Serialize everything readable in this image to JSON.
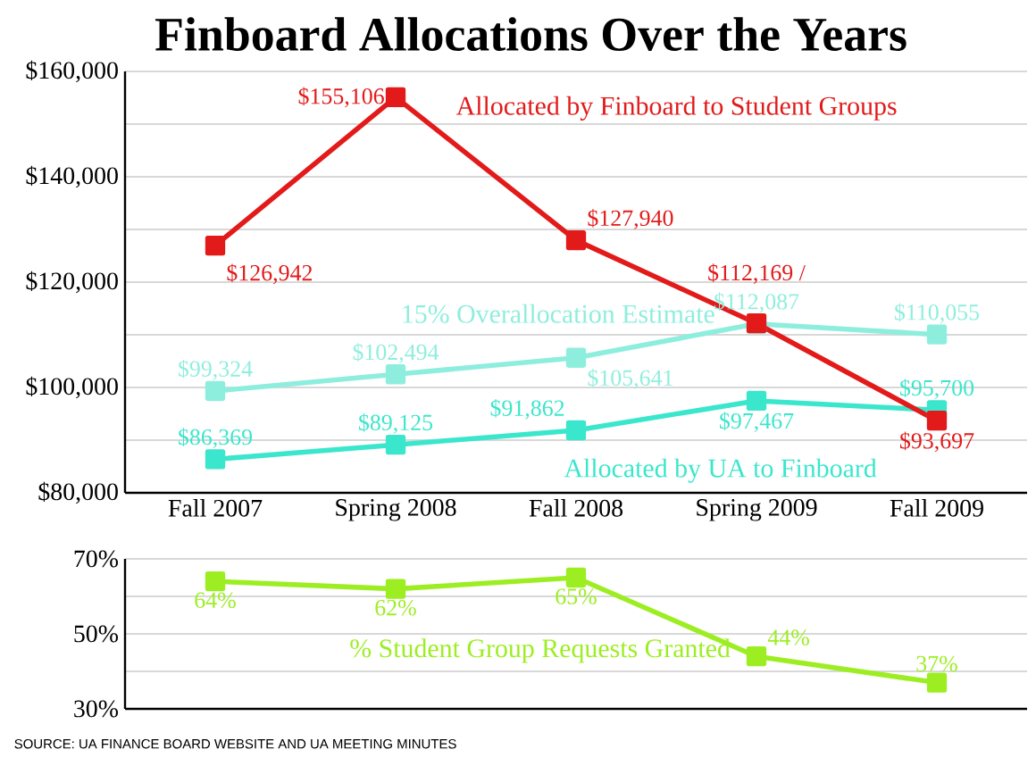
{
  "chart_data": [
    {
      "type": "line",
      "title": "Finboard Allocations Over the Years",
      "categories": [
        "Fall 2007",
        "Spring 2008",
        "Fall 2008",
        "Spring 2009",
        "Fall 2009"
      ],
      "marker": "square",
      "line_style": "solid",
      "grid": "y",
      "ylim": [
        80000,
        160000
      ],
      "yticks": [
        {
          "value": 80000,
          "label": "$80,000"
        },
        {
          "value": 90000,
          "label": null
        },
        {
          "value": 100000,
          "label": "$100,000"
        },
        {
          "value": 110000,
          "label": null
        },
        {
          "value": 120000,
          "label": "$120,000"
        },
        {
          "value": 130000,
          "label": null
        },
        {
          "value": 140000,
          "label": "$140,000"
        },
        {
          "value": 150000,
          "label": null
        },
        {
          "value": 160000,
          "label": "$160,000"
        }
      ],
      "series": [
        {
          "name": "15% Overallocation Estimate",
          "color": "#8eeedd",
          "values": [
            99324,
            102494,
            105641,
            112087,
            110055
          ],
          "value_labels": [
            "$99,324",
            "$102,494",
            "$105,641",
            "$112,087",
            "$110,055"
          ]
        },
        {
          "name": "Allocated by UA to Finboard",
          "color": "#3ae6cc",
          "values": [
            86369,
            89125,
            91862,
            97467,
            95700
          ],
          "value_labels": [
            "$86,369",
            "$89,125",
            "$91,862",
            "$97,467",
            "$95,700"
          ]
        },
        {
          "name": "Allocated by Finboard to Student Groups",
          "color": "#e21a1a",
          "values": [
            126942,
            155106,
            127940,
            112169,
            93697
          ],
          "value_labels": [
            "$126,942",
            "$155,106",
            "$127,940",
            "$112,169 /",
            "$93,697"
          ]
        }
      ]
    },
    {
      "type": "line",
      "categories": [
        null,
        null,
        null,
        null,
        null
      ],
      "marker": "square",
      "line_style": "solid",
      "grid": "y",
      "tick_labels": "y",
      "ylim": [
        30,
        70
      ],
      "yticks": [
        {
          "value": 30,
          "label": "30%"
        },
        {
          "value": 40,
          "label": null
        },
        {
          "value": 50,
          "label": "50%"
        },
        {
          "value": 60,
          "label": null
        },
        {
          "value": 70,
          "label": "70%"
        }
      ],
      "series": [
        {
          "name": "% Student Group Requests Granted",
          "color": "#9cee22",
          "values": [
            64,
            62,
            65,
            44,
            37
          ],
          "value_labels": [
            "64%",
            "62%",
            "65%",
            "44%",
            "37%"
          ]
        }
      ],
      "annotations": [
        "SOURCE: UA FINANCE BOARD WEBSITE AND UA MEETING MINUTES"
      ]
    }
  ]
}
